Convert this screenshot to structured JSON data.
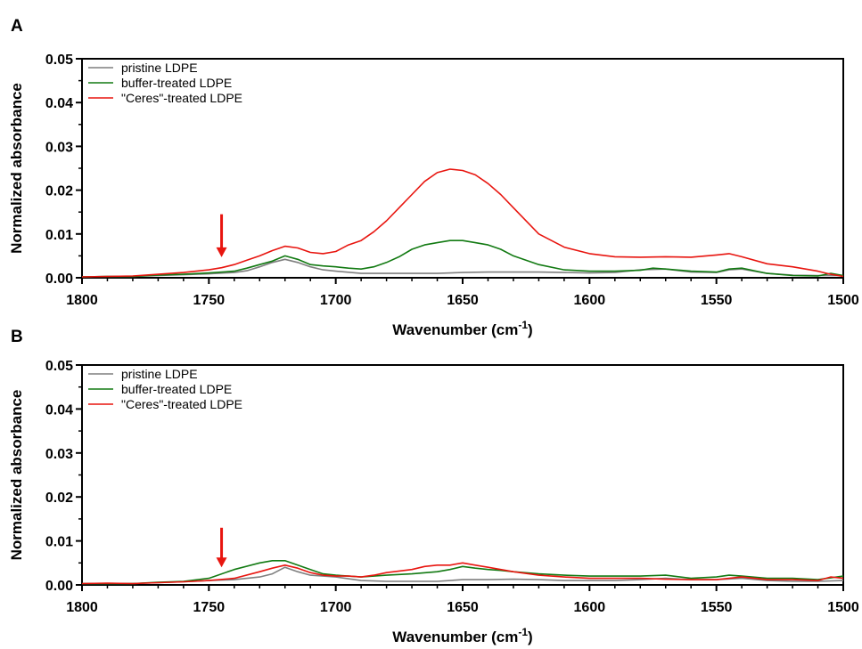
{
  "chart_data": [
    {
      "panel": "A",
      "type": "line",
      "xlabel": "Wavenumber (cm",
      "xlabel_sup": "-1",
      "xlabel_close": ")",
      "ylabel": "Normalized absorbance",
      "xlim": [
        1800,
        1500
      ],
      "ylim": [
        0,
        0.05
      ],
      "xticks": [
        "1800",
        "1750",
        "1700",
        "1650",
        "1600",
        "1550",
        "1500"
      ],
      "yticks": [
        "0.00",
        "0.01",
        "0.02",
        "0.03",
        "0.04",
        "0.05"
      ],
      "legend_position": "top-left",
      "arrow": {
        "x": 1745,
        "y_from": 0.0145,
        "y_to": 0.0047,
        "color": "#e8150f"
      },
      "series": [
        {
          "name": "pristine LDPE",
          "color": "#7f7f7f",
          "x": [
            1800,
            1790,
            1780,
            1770,
            1760,
            1750,
            1740,
            1735,
            1730,
            1725,
            1720,
            1715,
            1710,
            1705,
            1700,
            1690,
            1680,
            1670,
            1660,
            1650,
            1640,
            1630,
            1620,
            1610,
            1600,
            1590,
            1580,
            1570,
            1560,
            1550,
            1545,
            1540,
            1530,
            1520,
            1510,
            1500
          ],
          "y": [
            0.0002,
            0.0003,
            0.0003,
            0.0005,
            0.0007,
            0.0009,
            0.0012,
            0.0016,
            0.0025,
            0.0035,
            0.0042,
            0.0035,
            0.0025,
            0.0018,
            0.0015,
            0.001,
            0.001,
            0.001,
            0.001,
            0.0012,
            0.0013,
            0.0013,
            0.0013,
            0.0012,
            0.0011,
            0.0012,
            0.0018,
            0.002,
            0.0013,
            0.0012,
            0.0018,
            0.002,
            0.001,
            0.0006,
            0.0005,
            0.0005
          ]
        },
        {
          "name": "buffer-treated LDPE",
          "color": "#127a12",
          "x": [
            1800,
            1790,
            1780,
            1770,
            1760,
            1750,
            1740,
            1735,
            1730,
            1725,
            1720,
            1715,
            1710,
            1705,
            1700,
            1695,
            1690,
            1685,
            1680,
            1675,
            1670,
            1665,
            1660,
            1655,
            1650,
            1645,
            1640,
            1635,
            1630,
            1620,
            1610,
            1600,
            1590,
            1580,
            1575,
            1570,
            1560,
            1550,
            1545,
            1540,
            1530,
            1520,
            1510,
            1505,
            1500
          ],
          "y": [
            0.0002,
            0.0003,
            0.0003,
            0.0006,
            0.0008,
            0.0011,
            0.0015,
            0.0022,
            0.003,
            0.0038,
            0.005,
            0.0042,
            0.003,
            0.0027,
            0.0025,
            0.0022,
            0.002,
            0.0025,
            0.0035,
            0.0048,
            0.0065,
            0.0075,
            0.008,
            0.0085,
            0.0085,
            0.008,
            0.0075,
            0.0065,
            0.005,
            0.003,
            0.0018,
            0.0015,
            0.0015,
            0.0017,
            0.0022,
            0.002,
            0.0015,
            0.0013,
            0.002,
            0.0022,
            0.001,
            0.0005,
            0.0004,
            0.001,
            0.0005
          ]
        },
        {
          "name": "\"Ceres\"-treated LDPE",
          "color": "#e8150f",
          "x": [
            1800,
            1790,
            1780,
            1770,
            1760,
            1750,
            1745,
            1740,
            1735,
            1730,
            1725,
            1720,
            1715,
            1710,
            1705,
            1700,
            1695,
            1690,
            1685,
            1680,
            1675,
            1670,
            1665,
            1660,
            1655,
            1650,
            1645,
            1640,
            1635,
            1630,
            1620,
            1610,
            1600,
            1590,
            1580,
            1570,
            1560,
            1550,
            1545,
            1540,
            1530,
            1520,
            1510,
            1505,
            1500
          ],
          "y": [
            0.0002,
            0.0003,
            0.0004,
            0.0008,
            0.0012,
            0.0018,
            0.0023,
            0.003,
            0.004,
            0.005,
            0.0062,
            0.0072,
            0.0068,
            0.0058,
            0.0055,
            0.006,
            0.0075,
            0.0085,
            0.0105,
            0.013,
            0.016,
            0.019,
            0.022,
            0.024,
            0.0248,
            0.0245,
            0.0235,
            0.0215,
            0.019,
            0.016,
            0.01,
            0.007,
            0.0055,
            0.0048,
            0.0047,
            0.0048,
            0.0047,
            0.0052,
            0.0055,
            0.0048,
            0.0032,
            0.0025,
            0.0015,
            0.0008,
            0.0003
          ]
        }
      ]
    },
    {
      "panel": "B",
      "type": "line",
      "xlabel": "Wavenumber (cm",
      "xlabel_sup": "-1",
      "xlabel_close": ")",
      "ylabel": "Normalized absorbance",
      "xlim": [
        1800,
        1500
      ],
      "ylim": [
        0,
        0.05
      ],
      "xticks": [
        "1800",
        "1750",
        "1700",
        "1650",
        "1600",
        "1550",
        "1500"
      ],
      "yticks": [
        "0.00",
        "0.01",
        "0.02",
        "0.03",
        "0.04",
        "0.05"
      ],
      "legend_position": "top-left",
      "arrow": {
        "x": 1745,
        "y_from": 0.013,
        "y_to": 0.004,
        "color": "#e8150f"
      },
      "series": [
        {
          "name": "pristine LDPE",
          "color": "#7f7f7f",
          "x": [
            1800,
            1790,
            1780,
            1770,
            1760,
            1750,
            1740,
            1730,
            1725,
            1720,
            1715,
            1710,
            1700,
            1690,
            1680,
            1670,
            1660,
            1650,
            1640,
            1630,
            1620,
            1610,
            1600,
            1590,
            1580,
            1570,
            1560,
            1550,
            1540,
            1530,
            1520,
            1510,
            1500
          ],
          "y": [
            0.0003,
            0.0003,
            0.0003,
            0.0005,
            0.0007,
            0.001,
            0.0012,
            0.0018,
            0.0025,
            0.004,
            0.003,
            0.0022,
            0.0018,
            0.001,
            0.0008,
            0.0008,
            0.0008,
            0.0012,
            0.0012,
            0.0013,
            0.0012,
            0.001,
            0.001,
            0.001,
            0.0012,
            0.0015,
            0.0012,
            0.0012,
            0.0015,
            0.001,
            0.0008,
            0.0008,
            0.001
          ]
        },
        {
          "name": "buffer-treated LDPE",
          "color": "#127a12",
          "x": [
            1800,
            1790,
            1780,
            1770,
            1760,
            1750,
            1740,
            1730,
            1725,
            1720,
            1715,
            1710,
            1705,
            1700,
            1695,
            1690,
            1685,
            1680,
            1670,
            1660,
            1655,
            1650,
            1645,
            1640,
            1635,
            1630,
            1620,
            1610,
            1600,
            1590,
            1580,
            1570,
            1560,
            1550,
            1545,
            1540,
            1530,
            1520,
            1510,
            1500
          ],
          "y": [
            0.0003,
            0.0003,
            0.0003,
            0.0006,
            0.0008,
            0.0015,
            0.0035,
            0.005,
            0.0055,
            0.0055,
            0.0045,
            0.0035,
            0.0025,
            0.0022,
            0.002,
            0.0018,
            0.002,
            0.0022,
            0.0025,
            0.003,
            0.0035,
            0.0042,
            0.0038,
            0.0035,
            0.0033,
            0.003,
            0.0025,
            0.0022,
            0.002,
            0.002,
            0.002,
            0.0022,
            0.0015,
            0.0018,
            0.0022,
            0.002,
            0.0015,
            0.0015,
            0.0012,
            0.002
          ]
        },
        {
          "name": "\"Ceres\"-treated LDPE",
          "color": "#e8150f",
          "x": [
            1800,
            1790,
            1780,
            1770,
            1760,
            1750,
            1740,
            1730,
            1725,
            1720,
            1715,
            1710,
            1705,
            1700,
            1695,
            1690,
            1685,
            1680,
            1670,
            1665,
            1660,
            1655,
            1650,
            1645,
            1640,
            1635,
            1630,
            1620,
            1610,
            1600,
            1590,
            1580,
            1570,
            1560,
            1550,
            1540,
            1530,
            1520,
            1510,
            1505,
            1500
          ],
          "y": [
            0.0003,
            0.0004,
            0.0003,
            0.0005,
            0.0007,
            0.001,
            0.0015,
            0.003,
            0.0038,
            0.0045,
            0.0038,
            0.0028,
            0.0022,
            0.002,
            0.002,
            0.0018,
            0.0022,
            0.0028,
            0.0035,
            0.0042,
            0.0045,
            0.0045,
            0.005,
            0.0045,
            0.004,
            0.0035,
            0.003,
            0.0022,
            0.0018,
            0.0015,
            0.0015,
            0.0015,
            0.0013,
            0.0012,
            0.0012,
            0.0018,
            0.0012,
            0.0012,
            0.001,
            0.0018,
            0.0015
          ]
        }
      ]
    }
  ]
}
